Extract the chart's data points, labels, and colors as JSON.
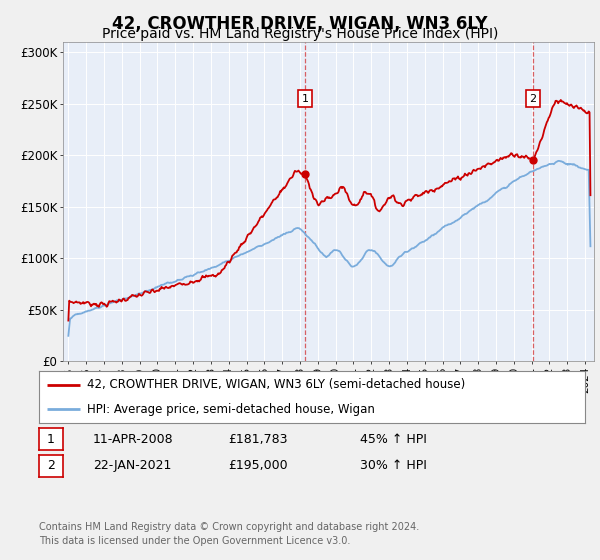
{
  "title": "42, CROWTHER DRIVE, WIGAN, WN3 6LY",
  "subtitle": "Price paid vs. HM Land Registry's House Price Index (HPI)",
  "title_fontsize": 12,
  "subtitle_fontsize": 10,
  "ylabel_ticks": [
    "£0",
    "£50K",
    "£100K",
    "£150K",
    "£200K",
    "£250K",
    "£300K"
  ],
  "ytick_vals": [
    0,
    50000,
    100000,
    150000,
    200000,
    250000,
    300000
  ],
  "ylim": [
    0,
    310000
  ],
  "xlim_start": 1994.7,
  "xlim_end": 2024.5,
  "background_color": "#f0f0f0",
  "plot_bg": "#e8eef8",
  "red_color": "#cc0000",
  "blue_color": "#7aacdc",
  "marker1_x": 2008.28,
  "marker1_y": 181783,
  "marker1_label": "1",
  "marker2_x": 2021.06,
  "marker2_y": 195000,
  "marker2_label": "2",
  "legend_entries": [
    "42, CROWTHER DRIVE, WIGAN, WN3 6LY (semi-detached house)",
    "HPI: Average price, semi-detached house, Wigan"
  ],
  "table_rows": [
    [
      "1",
      "11-APR-2008",
      "£181,783",
      "45% ↑ HPI"
    ],
    [
      "2",
      "22-JAN-2021",
      "£195,000",
      "30% ↑ HPI"
    ]
  ],
  "footer": "Contains HM Land Registry data © Crown copyright and database right 2024.\nThis data is licensed under the Open Government Licence v3.0.",
  "xtick_years": [
    1995,
    1996,
    1997,
    1998,
    1999,
    2000,
    2001,
    2002,
    2003,
    2004,
    2005,
    2006,
    2007,
    2008,
    2009,
    2010,
    2011,
    2012,
    2013,
    2014,
    2015,
    2016,
    2017,
    2018,
    2019,
    2020,
    2021,
    2022,
    2023,
    2024
  ]
}
